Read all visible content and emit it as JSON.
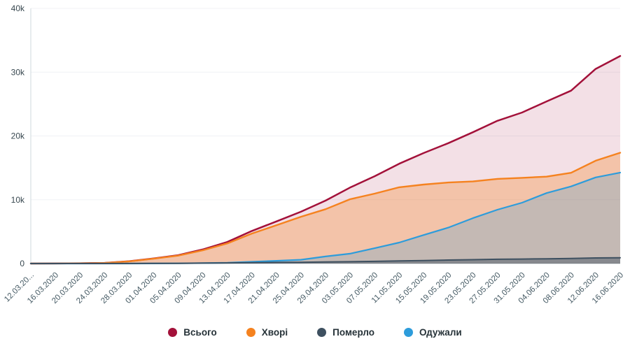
{
  "chart_data": {
    "type": "area",
    "title": "",
    "xlabel": "",
    "ylabel": "",
    "ylim": [
      0,
      40000
    ],
    "grid": true,
    "legend_position": "bottom",
    "y_ticks": [
      {
        "label": "0",
        "value": 0
      },
      {
        "label": "10k",
        "value": 10000
      },
      {
        "label": "20k",
        "value": 20000
      },
      {
        "label": "30k",
        "value": 30000
      },
      {
        "label": "40k",
        "value": 40000
      }
    ],
    "x_tick_labels": [
      "12.03.20...",
      "16.03.2020",
      "20.03.2020",
      "24.03.2020",
      "28.03.2020",
      "01.04.2020",
      "05.04.2020",
      "09.04.2020",
      "13.04.2020",
      "17.04.2020",
      "21.04.2020",
      "25.04.2020",
      "29.04.2020",
      "03.05.2020",
      "07.05.2020",
      "11.05.2020",
      "15.05.2020",
      "19.05.2020",
      "23.05.2020",
      "27.05.2020",
      "31.05.2020",
      "04.06.2020",
      "08.06.2020",
      "12.06.2020",
      "16.06.2020"
    ],
    "series": [
      {
        "id": "total",
        "name": "Всього",
        "color": "#a3113a",
        "fill_opacity": 0.13,
        "line_width": 2.5,
        "values": [
          3,
          7,
          41,
          97,
          356,
          794,
          1308,
          2203,
          3372,
          5106,
          6592,
          8125,
          9866,
          11913,
          13691,
          15648,
          17330,
          18876,
          20580,
          22382,
          23672,
          25411,
          27101,
          30506,
          32536
        ]
      },
      {
        "id": "sick",
        "name": "Хворі",
        "color": "#f5821f",
        "fill_opacity": 0.3,
        "line_width": 2.4,
        "values": [
          3,
          6,
          38,
          91,
          342,
          761,
          1243,
          2073,
          3155,
          4698,
          5994,
          7335,
          8513,
          10077,
          10955,
          11952,
          12381,
          12696,
          12867,
          13274,
          13438,
          13622,
          14224,
          16125,
          17371
        ]
      },
      {
        "id": "died",
        "name": "Померло",
        "color": "#3e5060",
        "fill_opacity": 0.45,
        "line_width": 2.0,
        "values": [
          0,
          1,
          2,
          3,
          9,
          20,
          37,
          69,
          98,
          133,
          174,
          201,
          250,
          288,
          340,
          408,
          476,
          548,
          605,
          669,
          696,
          747,
          784,
          880,
          912
        ]
      },
      {
        "id": "recovered",
        "name": "Одужали",
        "color": "#2d9cdb",
        "fill_opacity": 0.24,
        "line_width": 2.2,
        "values": [
          0,
          0,
          1,
          3,
          5,
          13,
          28,
          61,
          119,
          275,
          424,
          589,
          1103,
          1548,
          2396,
          3288,
          4473,
          5632,
          7108,
          8439,
          9538,
          11042,
          12093,
          13501,
          14253
        ]
      }
    ],
    "legend": [
      "Всього",
      "Хворі",
      "Померло",
      "Одужали"
    ]
  },
  "colors": {
    "background": "#ffffff",
    "axis_line": "#b4bec6",
    "gridline": "#f0f2f5",
    "tick_text": "#455a64"
  }
}
